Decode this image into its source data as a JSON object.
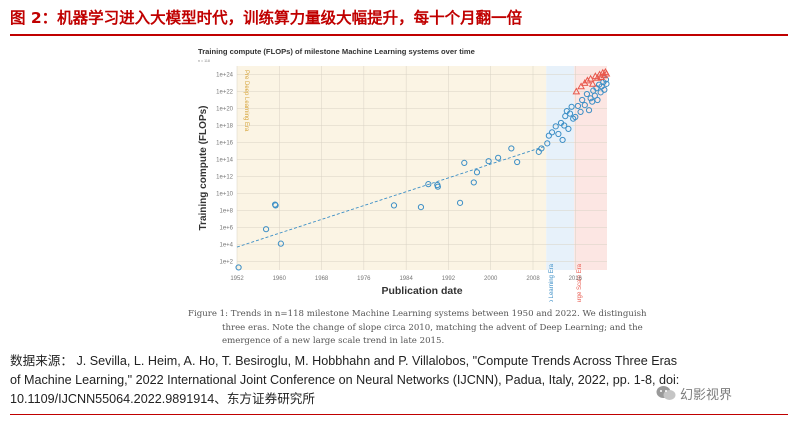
{
  "figure": {
    "title": "图 2：机器学习进入大模型时代，训练算力量级大幅提升，每十个月翻一倍",
    "caption_lines": [
      "Figure 1: Trends in n=118 milestone Machine Learning systems between 1950 and 2022. We distinguish",
      "three eras. Note the change of slope circa 2010, matching the advent of Deep Learning; and the",
      "emergence of a new large scale trend in late 2015."
    ],
    "source_lines": [
      "数据来源： J. Sevilla, L. Heim, A. Ho, T. Besiroglu, M. Hobbhahn and P. Villalobos, \"Compute Trends Across Three Eras",
      "of Machine Learning,\" 2022 International Joint Conference on Neural Networks (IJCNN), Padua, Italy, 2022, pp. 1-8, doi:",
      "10.1109/IJCNN55064.2022.9891914、东方证券研究所"
    ],
    "watermark": "幻影视界"
  },
  "colors": {
    "title_red": "#c00000",
    "pre_dl_band": "#fbf4e4",
    "dl_band": "#e7f1fa",
    "large_band": "#fce6e3",
    "dl_points": "#3d8fc6",
    "large_points": "#e8584d",
    "trend_line": "#3d8fc6"
  },
  "chart_data": {
    "type": "scatter",
    "title": "Training compute (FLOPs) of milestone Machine Learning systems over time",
    "subtitle": "n = 118",
    "xlabel": "Publication date",
    "ylabel": "Training compute (FLOPs)",
    "x_ticks": [
      "1952",
      "1960",
      "1968",
      "1976",
      "1984",
      "1992",
      "2000",
      "2008",
      "2016"
    ],
    "y_ticks": [
      "1e+2",
      "1e+4",
      "1e+6",
      "1e+8",
      "1e+10",
      "1e+12",
      "1e+14",
      "1e+16",
      "1e+18",
      "1e+20",
      "1e+22",
      "1e+24"
    ],
    "xlim": [
      1952,
      2022
    ],
    "ylim_log10": [
      1,
      25
    ],
    "y_scale": "log",
    "grid": true,
    "eras": [
      {
        "label": "Pre Deep Learning Era",
        "start": 1952,
        "end": 2010.5
      },
      {
        "label": "Deep Learning Era",
        "start": 2010.5,
        "end": 2015.8
      },
      {
        "label": "Large Scale Era",
        "start": 2015.8,
        "end": 2022
      }
    ],
    "trend": {
      "x": [
        1952,
        2010.5
      ],
      "log10_y": [
        3.7,
        15.6
      ]
    },
    "series": [
      {
        "era": "pre",
        "points": [
          {
            "x": 1952.3,
            "log10_y": 1.3
          },
          {
            "x": 1957.5,
            "log10_y": 5.8
          },
          {
            "x": 1959.2,
            "log10_y": 8.7
          },
          {
            "x": 1959.3,
            "log10_y": 8.6
          },
          {
            "x": 1960.3,
            "log10_y": 4.1
          },
          {
            "x": 1981.7,
            "log10_y": 8.6
          },
          {
            "x": 1986.8,
            "log10_y": 8.4
          },
          {
            "x": 1988.2,
            "log10_y": 11.1
          },
          {
            "x": 1989.9,
            "log10_y": 11.0
          },
          {
            "x": 1990.0,
            "log10_y": 10.8
          },
          {
            "x": 1994.2,
            "log10_y": 8.9
          },
          {
            "x": 1995.0,
            "log10_y": 13.6
          },
          {
            "x": 1996.8,
            "log10_y": 11.3
          },
          {
            "x": 1997.4,
            "log10_y": 12.5
          },
          {
            "x": 1999.6,
            "log10_y": 13.8
          },
          {
            "x": 2001.4,
            "log10_y": 14.2
          },
          {
            "x": 2003.9,
            "log10_y": 15.3
          },
          {
            "x": 2005.0,
            "log10_y": 13.7
          },
          {
            "x": 2009.1,
            "log10_y": 14.9
          },
          {
            "x": 2009.6,
            "log10_y": 15.3
          }
        ]
      },
      {
        "era": "deep",
        "points": [
          {
            "x": 2010.7,
            "log10_y": 15.9
          },
          {
            "x": 2011.0,
            "log10_y": 16.8
          },
          {
            "x": 2011.6,
            "log10_y": 17.2
          },
          {
            "x": 2012.3,
            "log10_y": 17.9
          },
          {
            "x": 2012.8,
            "log10_y": 17.0
          },
          {
            "x": 2013.3,
            "log10_y": 18.3
          },
          {
            "x": 2013.6,
            "log10_y": 16.3
          },
          {
            "x": 2013.9,
            "log10_y": 18.0
          },
          {
            "x": 2014.1,
            "log10_y": 19.1
          },
          {
            "x": 2014.4,
            "log10_y": 19.7
          },
          {
            "x": 2014.7,
            "log10_y": 17.6
          },
          {
            "x": 2015.0,
            "log10_y": 19.4
          },
          {
            "x": 2015.3,
            "log10_y": 20.2
          },
          {
            "x": 2015.6,
            "log10_y": 18.8
          }
        ]
      },
      {
        "era": "large_deep_style",
        "points": [
          {
            "x": 2016.0,
            "log10_y": 19.0
          },
          {
            "x": 2016.5,
            "log10_y": 20.3
          },
          {
            "x": 2017.0,
            "log10_y": 19.6
          },
          {
            "x": 2017.3,
            "log10_y": 21.0
          },
          {
            "x": 2017.8,
            "log10_y": 20.4
          },
          {
            "x": 2018.2,
            "log10_y": 21.7
          },
          {
            "x": 2018.6,
            "log10_y": 19.8
          },
          {
            "x": 2018.9,
            "log10_y": 21.2
          },
          {
            "x": 2019.2,
            "log10_y": 20.8
          },
          {
            "x": 2019.4,
            "log10_y": 22.1
          },
          {
            "x": 2019.7,
            "log10_y": 21.5
          },
          {
            "x": 2020.0,
            "log10_y": 22.4
          },
          {
            "x": 2020.2,
            "log10_y": 21.0
          },
          {
            "x": 2020.5,
            "log10_y": 22.8
          },
          {
            "x": 2020.8,
            "log10_y": 21.9
          },
          {
            "x": 2021.0,
            "log10_y": 22.6
          },
          {
            "x": 2021.3,
            "log10_y": 23.1
          },
          {
            "x": 2021.5,
            "log10_y": 22.2
          },
          {
            "x": 2021.8,
            "log10_y": 23.4
          },
          {
            "x": 2021.9,
            "log10_y": 22.9
          }
        ]
      },
      {
        "era": "large",
        "points": [
          {
            "x": 2016.2,
            "log10_y": 22.0
          },
          {
            "x": 2017.1,
            "log10_y": 22.6
          },
          {
            "x": 2017.8,
            "log10_y": 23.0
          },
          {
            "x": 2018.3,
            "log10_y": 23.3
          },
          {
            "x": 2018.9,
            "log10_y": 23.5
          },
          {
            "x": 2019.3,
            "log10_y": 22.9
          },
          {
            "x": 2019.8,
            "log10_y": 23.8
          },
          {
            "x": 2020.2,
            "log10_y": 23.6
          },
          {
            "x": 2020.6,
            "log10_y": 24.0
          },
          {
            "x": 2020.9,
            "log10_y": 23.7
          },
          {
            "x": 2021.2,
            "log10_y": 24.2
          },
          {
            "x": 2021.5,
            "log10_y": 23.9
          },
          {
            "x": 2021.7,
            "log10_y": 24.3
          },
          {
            "x": 2021.9,
            "log10_y": 24.1
          }
        ]
      }
    ]
  }
}
